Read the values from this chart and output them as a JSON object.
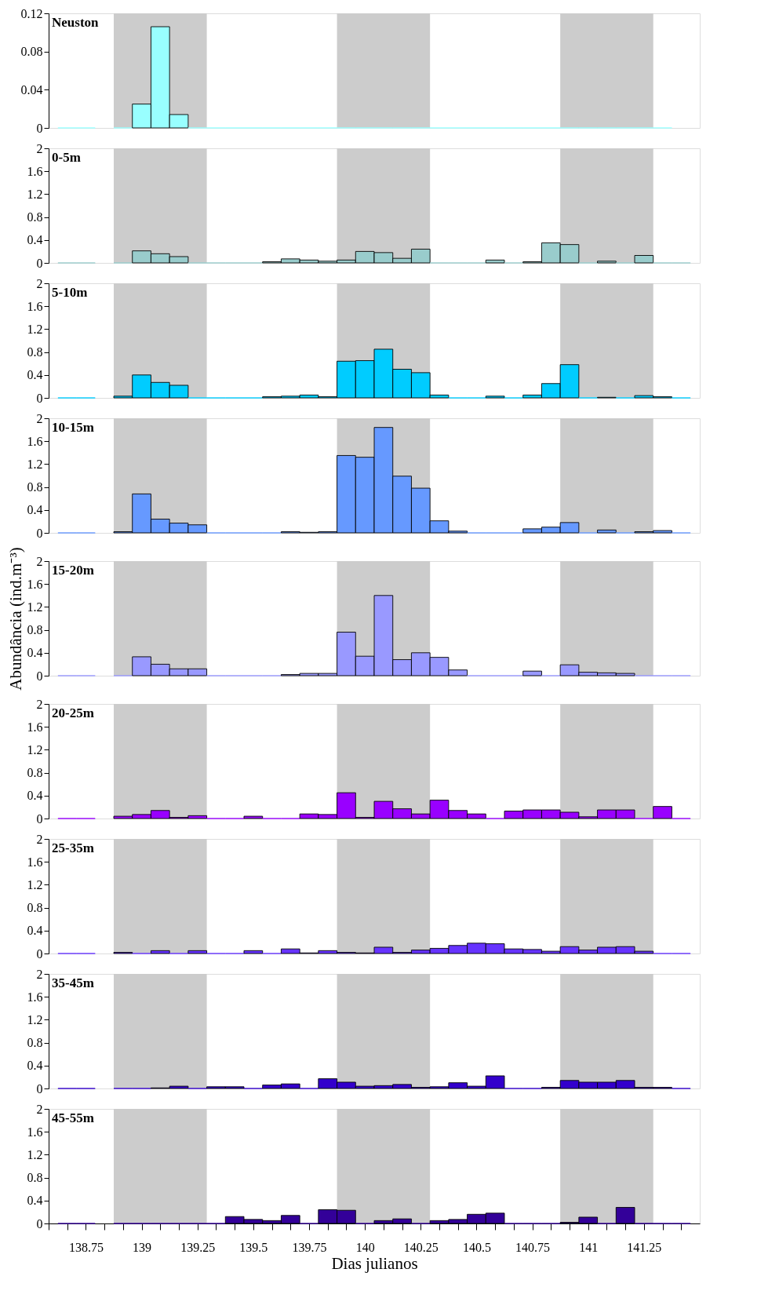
{
  "chart_data": [
    {
      "type": "bar",
      "title": "Neuston",
      "color": "#99ffff",
      "x": [
        138.6667,
        138.75,
        138.8333,
        138.9167,
        139,
        139.0833,
        139.1667,
        139.25,
        139.3333,
        139.4167,
        139.5,
        139.5833,
        139.6667,
        139.75,
        139.8333,
        139.9167,
        140,
        140.0833,
        140.1667,
        140.25,
        140.3333,
        140.4167,
        140.5,
        140.5833,
        140.6667,
        140.75,
        140.8333,
        140.9167,
        141,
        141.0833,
        141.1667,
        141.25,
        141.3333
      ],
      "values": [
        0,
        0,
        null,
        0,
        0.025,
        0.106,
        0.014,
        0,
        0,
        0,
        0,
        0,
        0,
        0,
        0,
        0,
        0,
        0,
        0,
        0,
        0,
        0,
        0,
        0,
        0,
        0,
        0,
        0,
        0,
        0,
        0,
        0,
        0
      ],
      "xlim": [
        138.5833,
        141.5
      ],
      "ylim": [
        0,
        0.12
      ],
      "yticks": [
        0,
        0.04,
        0.08,
        0.12
      ],
      "tick_labels": "y",
      "grid": false,
      "bands": [
        {
          "axis": "x",
          "from": 138.875,
          "to": 139.2917,
          "color": "#cccccc"
        },
        {
          "axis": "x",
          "from": 139.875,
          "to": 140.2917,
          "color": "#cccccc"
        },
        {
          "axis": "x",
          "from": 140.875,
          "to": 141.2917,
          "color": "#cccccc"
        }
      ]
    },
    {
      "type": "bar",
      "title": "0-5m",
      "color": "#99cccc",
      "x": [
        138.6667,
        138.75,
        138.8333,
        138.9167,
        139,
        139.0833,
        139.1667,
        139.25,
        139.3333,
        139.4167,
        139.5,
        139.5833,
        139.6667,
        139.75,
        139.8333,
        139.9167,
        140,
        140.0833,
        140.1667,
        140.25,
        140.3333,
        140.4167,
        140.5,
        140.5833,
        140.6667,
        140.75,
        140.8333,
        140.9167,
        141,
        141.0833,
        141.1667,
        141.25,
        141.3333,
        141.4167
      ],
      "values": [
        0,
        0,
        null,
        0,
        0.21,
        0.16,
        0.11,
        0,
        0,
        0,
        0,
        0.02,
        0.07,
        0.05,
        0.03,
        0.05,
        0.2,
        0.18,
        0.08,
        0.24,
        0,
        0,
        0,
        0.05,
        0,
        0.02,
        0.35,
        0.32,
        0,
        0.03,
        0,
        0.13,
        0,
        0
      ],
      "xlim": [
        138.5833,
        141.5
      ],
      "ylim": [
        0,
        2
      ],
      "yticks": [
        0,
        0.4,
        0.8,
        1.2,
        1.6,
        2
      ],
      "tick_labels": "y",
      "grid": false,
      "bands": [
        {
          "axis": "x",
          "from": 138.875,
          "to": 139.2917,
          "color": "#cccccc"
        },
        {
          "axis": "x",
          "from": 139.875,
          "to": 140.2917,
          "color": "#cccccc"
        },
        {
          "axis": "x",
          "from": 140.875,
          "to": 141.2917,
          "color": "#cccccc"
        }
      ]
    },
    {
      "type": "bar",
      "title": "5-10m",
      "color": "#00ccff",
      "x": [
        138.6667,
        138.75,
        138.8333,
        138.9167,
        139,
        139.0833,
        139.1667,
        139.25,
        139.3333,
        139.4167,
        139.5,
        139.5833,
        139.6667,
        139.75,
        139.8333,
        139.9167,
        140,
        140.0833,
        140.1667,
        140.25,
        140.3333,
        140.4167,
        140.5,
        140.5833,
        140.6667,
        140.75,
        140.8333,
        140.9167,
        141,
        141.0833,
        141.1667,
        141.25,
        141.3333,
        141.4167
      ],
      "values": [
        0,
        0,
        null,
        0.03,
        0.4,
        0.27,
        0.22,
        0,
        0,
        0,
        0,
        0.02,
        0.03,
        0.05,
        0.02,
        0.64,
        0.65,
        0.85,
        0.5,
        0.44,
        0.05,
        0,
        0,
        0.03,
        0,
        0.05,
        0.25,
        0.58,
        0,
        0.01,
        0,
        0.04,
        0.02,
        0
      ],
      "xlim": [
        138.5833,
        141.5
      ],
      "ylim": [
        0,
        2
      ],
      "yticks": [
        0,
        0.4,
        0.8,
        1.2,
        1.6,
        2
      ],
      "tick_labels": "y",
      "grid": false,
      "bands": [
        {
          "axis": "x",
          "from": 138.875,
          "to": 139.2917,
          "color": "#cccccc"
        },
        {
          "axis": "x",
          "from": 139.875,
          "to": 140.2917,
          "color": "#cccccc"
        },
        {
          "axis": "x",
          "from": 140.875,
          "to": 141.2917,
          "color": "#cccccc"
        }
      ]
    },
    {
      "type": "bar",
      "title": "10-15m",
      "color": "#6699ff",
      "x": [
        138.6667,
        138.75,
        138.8333,
        138.9167,
        139,
        139.0833,
        139.1667,
        139.25,
        139.3333,
        139.4167,
        139.5,
        139.5833,
        139.6667,
        139.75,
        139.8333,
        139.9167,
        140,
        140.0833,
        140.1667,
        140.25,
        140.3333,
        140.4167,
        140.5,
        140.5833,
        140.6667,
        140.75,
        140.8333,
        140.9167,
        141,
        141.0833,
        141.1667,
        141.25,
        141.3333,
        141.4167
      ],
      "values": [
        0,
        0,
        null,
        0.02,
        0.68,
        0.24,
        0.17,
        0.14,
        0,
        0,
        0,
        0,
        0.02,
        0.01,
        0.02,
        1.35,
        1.32,
        1.84,
        0.99,
        0.78,
        0.21,
        0.03,
        0,
        0,
        0,
        0.07,
        0.1,
        0.18,
        0,
        0.05,
        0,
        0.02,
        0.04,
        0
      ],
      "xlim": [
        138.5833,
        141.5
      ],
      "ylim": [
        0,
        2
      ],
      "yticks": [
        0,
        0.4,
        0.8,
        1.2,
        1.6,
        2
      ],
      "tick_labels": "y",
      "grid": false,
      "bands": [
        {
          "axis": "x",
          "from": 138.875,
          "to": 139.2917,
          "color": "#cccccc"
        },
        {
          "axis": "x",
          "from": 139.875,
          "to": 140.2917,
          "color": "#cccccc"
        },
        {
          "axis": "x",
          "from": 140.875,
          "to": 141.2917,
          "color": "#cccccc"
        }
      ]
    },
    {
      "type": "bar",
      "title": "15-20m",
      "ylabel": "Abundância (ind.m⁻³)",
      "color": "#9999ff",
      "x": [
        138.6667,
        138.75,
        138.8333,
        138.9167,
        139,
        139.0833,
        139.1667,
        139.25,
        139.3333,
        139.4167,
        139.5,
        139.5833,
        139.6667,
        139.75,
        139.8333,
        139.9167,
        140,
        140.0833,
        140.1667,
        140.25,
        140.3333,
        140.4167,
        140.5,
        140.5833,
        140.6667,
        140.75,
        140.8333,
        140.9167,
        141,
        141.0833,
        141.1667,
        141.25,
        141.3333,
        141.4167
      ],
      "values": [
        0,
        0,
        null,
        0,
        0.33,
        0.2,
        0.12,
        0.12,
        0,
        0,
        0,
        0,
        0.02,
        0.04,
        0.04,
        0.76,
        0.34,
        1.4,
        0.28,
        0.4,
        0.32,
        0.1,
        0,
        0,
        0,
        0.08,
        0,
        0.19,
        0.06,
        0.05,
        0.04,
        0,
        0,
        0
      ],
      "xlim": [
        138.5833,
        141.5
      ],
      "ylim": [
        0,
        2
      ],
      "yticks": [
        0,
        0.4,
        0.8,
        1.2,
        1.6,
        2
      ],
      "tick_labels": "y",
      "grid": false,
      "bands": [
        {
          "axis": "x",
          "from": 138.875,
          "to": 139.2917,
          "color": "#cccccc"
        },
        {
          "axis": "x",
          "from": 139.875,
          "to": 140.2917,
          "color": "#cccccc"
        },
        {
          "axis": "x",
          "from": 140.875,
          "to": 141.2917,
          "color": "#cccccc"
        }
      ]
    },
    {
      "type": "bar",
      "title": "20-25m",
      "color": "#9900ff",
      "x": [
        138.6667,
        138.75,
        138.8333,
        138.9167,
        139,
        139.0833,
        139.1667,
        139.25,
        139.3333,
        139.4167,
        139.5,
        139.5833,
        139.6667,
        139.75,
        139.8333,
        139.9167,
        140,
        140.0833,
        140.1667,
        140.25,
        140.3333,
        140.4167,
        140.5,
        140.5833,
        140.6667,
        140.75,
        140.8333,
        140.9167,
        141,
        141.0833,
        141.1667,
        141.25,
        141.3333,
        141.4167
      ],
      "values": [
        0,
        0,
        null,
        0.04,
        0.07,
        0.14,
        0.02,
        0.05,
        0,
        0,
        0.04,
        0,
        0,
        0.08,
        0.07,
        0.45,
        0.02,
        0.3,
        0.17,
        0.08,
        0.32,
        0.14,
        0.08,
        0,
        0.13,
        0.15,
        0.15,
        0.11,
        0.03,
        0.15,
        0.15,
        0,
        0.21,
        0
      ],
      "xlim": [
        138.5833,
        141.5
      ],
      "ylim": [
        0,
        2
      ],
      "yticks": [
        0,
        0.4,
        0.8,
        1.2,
        1.6,
        2
      ],
      "tick_labels": "y",
      "grid": false,
      "bands": [
        {
          "axis": "x",
          "from": 138.875,
          "to": 139.2917,
          "color": "#cccccc"
        },
        {
          "axis": "x",
          "from": 139.875,
          "to": 140.2917,
          "color": "#cccccc"
        },
        {
          "axis": "x",
          "from": 140.875,
          "to": 141.2917,
          "color": "#cccccc"
        }
      ]
    },
    {
      "type": "bar",
      "title": "25-35m",
      "color": "#6633ff",
      "x": [
        138.6667,
        138.75,
        138.8333,
        138.9167,
        139,
        139.0833,
        139.1667,
        139.25,
        139.3333,
        139.4167,
        139.5,
        139.5833,
        139.6667,
        139.75,
        139.8333,
        139.9167,
        140,
        140.0833,
        140.1667,
        140.25,
        140.3333,
        140.4167,
        140.5,
        140.5833,
        140.6667,
        140.75,
        140.8333,
        140.9167,
        141,
        141.0833,
        141.1667,
        141.25,
        141.3333,
        141.4167
      ],
      "values": [
        0,
        0,
        null,
        0.02,
        0,
        0.05,
        0,
        0.05,
        0,
        0,
        0.05,
        0,
        0.08,
        0.01,
        0.05,
        0.02,
        0.01,
        0.11,
        0.02,
        0.06,
        0.09,
        0.14,
        0.18,
        0.17,
        0.08,
        0.07,
        0.04,
        0.12,
        0.06,
        0.11,
        0.12,
        0.04,
        0,
        0
      ],
      "xlim": [
        138.5833,
        141.5
      ],
      "ylim": [
        0,
        2
      ],
      "yticks": [
        0,
        0.4,
        0.8,
        1.2,
        1.6,
        2
      ],
      "tick_labels": "y",
      "grid": false,
      "bands": [
        {
          "axis": "x",
          "from": 138.875,
          "to": 139.2917,
          "color": "#cccccc"
        },
        {
          "axis": "x",
          "from": 139.875,
          "to": 140.2917,
          "color": "#cccccc"
        },
        {
          "axis": "x",
          "from": 140.875,
          "to": 141.2917,
          "color": "#cccccc"
        }
      ]
    },
    {
      "type": "bar",
      "title": "35-45m",
      "color": "#3300cc",
      "x": [
        138.6667,
        138.75,
        138.8333,
        138.9167,
        139,
        139.0833,
        139.1667,
        139.25,
        139.3333,
        139.4167,
        139.5,
        139.5833,
        139.6667,
        139.75,
        139.8333,
        139.9167,
        140,
        140.0833,
        140.1667,
        140.25,
        140.3333,
        140.4167,
        140.5,
        140.5833,
        140.6667,
        140.75,
        140.8333,
        140.9167,
        141,
        141.0833,
        141.1667,
        141.25,
        141.3333,
        141.4167
      ],
      "values": [
        0,
        0,
        null,
        0,
        0,
        0.01,
        0.04,
        0,
        0.03,
        0.03,
        0,
        0.06,
        0.08,
        0,
        0.17,
        0.11,
        0.04,
        0.05,
        0.07,
        0.02,
        0.03,
        0.1,
        0.04,
        0.22,
        0,
        0,
        0.02,
        0.14,
        0.11,
        0.11,
        0.14,
        0.02,
        0.02,
        0
      ],
      "xlim": [
        138.5833,
        141.5
      ],
      "ylim": [
        0,
        2
      ],
      "yticks": [
        0,
        0.4,
        0.8,
        1.2,
        1.6,
        2
      ],
      "tick_labels": "y",
      "grid": false,
      "bands": [
        {
          "axis": "x",
          "from": 138.875,
          "to": 139.2917,
          "color": "#cccccc"
        },
        {
          "axis": "x",
          "from": 139.875,
          "to": 140.2917,
          "color": "#cccccc"
        },
        {
          "axis": "x",
          "from": 140.875,
          "to": 141.2917,
          "color": "#cccccc"
        }
      ]
    },
    {
      "type": "bar",
      "title": "45-55m",
      "xlabel": "Dias julianos",
      "color": "#330099",
      "x": [
        138.6667,
        138.75,
        138.8333,
        138.9167,
        139,
        139.0833,
        139.1667,
        139.25,
        139.3333,
        139.4167,
        139.5,
        139.5833,
        139.6667,
        139.75,
        139.8333,
        139.9167,
        140,
        140.0833,
        140.1667,
        140.25,
        140.3333,
        140.4167,
        140.5,
        140.5833,
        140.6667,
        140.75,
        140.8333,
        140.9167,
        141,
        141.0833,
        141.1667,
        141.25,
        141.3333,
        141.4167
      ],
      "values": [
        0,
        0,
        null,
        0,
        0,
        0,
        0,
        0,
        0,
        0.12,
        0.07,
        0.05,
        0.14,
        0,
        0.24,
        0.23,
        0,
        0.05,
        0.08,
        0,
        0.05,
        0.07,
        0.16,
        0.18,
        0,
        0,
        0,
        0.02,
        0.11,
        0,
        0.28,
        0,
        0,
        0
      ],
      "xlim": [
        138.5833,
        141.5
      ],
      "ylim": [
        0,
        2
      ],
      "yticks": [
        0,
        0.4,
        0.8,
        1.2,
        1.6,
        2
      ],
      "grid": false,
      "xticks": [
        {
          "value": 138.5833,
          "label": null
        },
        {
          "value": 138.6667,
          "label": null
        },
        138.75,
        {
          "value": 138.8333,
          "label": null
        },
        {
          "value": 138.9167,
          "label": null
        },
        139,
        {
          "value": 139.0833,
          "label": null
        },
        {
          "value": 139.1667,
          "label": null
        },
        139.25,
        {
          "value": 139.3333,
          "label": null
        },
        {
          "value": 139.4167,
          "label": null
        },
        139.5,
        {
          "value": 139.5833,
          "label": null
        },
        {
          "value": 139.6667,
          "label": null
        },
        139.75,
        {
          "value": 139.8333,
          "label": null
        },
        {
          "value": 139.9167,
          "label": null
        },
        140,
        {
          "value": 140.0833,
          "label": null
        },
        {
          "value": 140.1667,
          "label": null
        },
        140.25,
        {
          "value": 140.3333,
          "label": null
        },
        {
          "value": 140.4167,
          "label": null
        },
        140.5,
        {
          "value": 140.5833,
          "label": null
        },
        {
          "value": 140.6667,
          "label": null
        },
        140.75,
        {
          "value": 140.8333,
          "label": null
        },
        {
          "value": 140.9167,
          "label": null
        },
        141,
        {
          "value": 141.0833,
          "label": null
        },
        {
          "value": 141.1667,
          "label": null
        },
        141.25,
        {
          "value": 141.3333,
          "label": null
        },
        {
          "value": 141.4167,
          "label": null
        }
      ],
      "bands": [
        {
          "axis": "x",
          "from": 138.875,
          "to": 139.2917,
          "color": "#cccccc"
        },
        {
          "axis": "x",
          "from": 139.875,
          "to": 140.2917,
          "color": "#cccccc"
        },
        {
          "axis": "x",
          "from": 140.875,
          "to": 141.2917,
          "color": "#cccccc"
        }
      ]
    }
  ]
}
